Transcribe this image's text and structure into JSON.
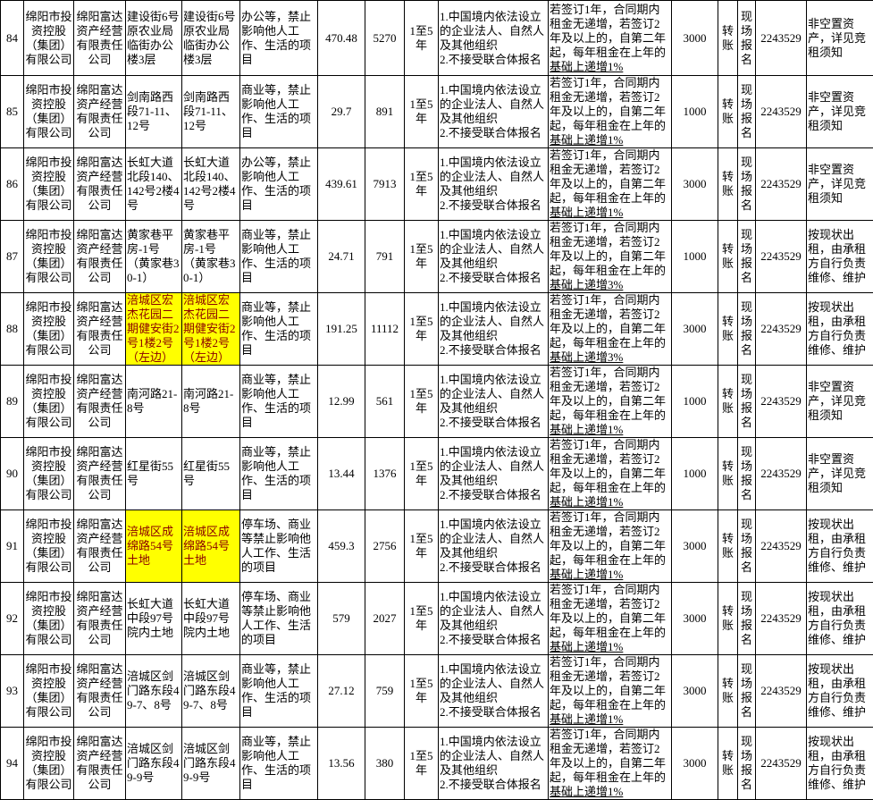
{
  "colors": {
    "highlight_bg": "#ffff00",
    "highlight_text": "#8b0000",
    "border": "#000000",
    "text": "#000000"
  },
  "table": {
    "rows": [
      {
        "num": "84",
        "owner": "绵阳市投资控股（集团）有限公司",
        "operator": "绵阳富达资产经营有限责任公司",
        "name": "建设街6号原农业局临街办公楼3层",
        "location": "建设街6号原农业局临街办公楼3层",
        "usage": "办公等，禁止影响他人工作、生活的项目",
        "area": "470.48",
        "price": "5270",
        "term": "1至5年",
        "qualification": "1.中国境内依法设立的企业法人、自然人及其他组织\n2.不接受联合体报名",
        "escalation_main": "若签订1年，合同期内租金无递增，若签订2年及以上的，自第二年起，每年租金在上年的",
        "escalation_tail": "基础上递增1%",
        "deposit": "3000",
        "payment": "转账",
        "registration": "现场报名",
        "phone": "2243529",
        "notes": "非空置资产，详见竞租须知",
        "highlight": false
      },
      {
        "num": "85",
        "owner": "绵阳市投资控股（集团）有限公司",
        "operator": "绵阳富达资产经营有限责任公司",
        "name": "剑南路西段71-11、12号",
        "location": "剑南路西段71-11、12号",
        "usage": "商业等，禁止影响他人工作、生活的项目",
        "area": "29.7",
        "price": "891",
        "term": "1至5年",
        "qualification": "1.中国境内依法设立的企业法人、自然人及其他组织\n2.不接受联合体报名",
        "escalation_main": "若签订1年，合同期内租金无递增，若签订2年及以上的，自第二年起，每年租金在上年的",
        "escalation_tail": "基础上递增1%",
        "deposit": "1000",
        "payment": "转账",
        "registration": "现场报名",
        "phone": "2243529",
        "notes": "非空置资产，详见竞租须知",
        "highlight": false
      },
      {
        "num": "86",
        "owner": "绵阳市投资控股（集团）有限公司",
        "operator": "绵阳富达资产经营有限责任公司",
        "name": "长虹大道北段140、142号2楼4号",
        "location": "长虹大道北段140、142号2楼4号",
        "usage": "办公等，禁止影响他人工作、生活的项目",
        "area": "439.61",
        "price": "7913",
        "term": "1至5年",
        "qualification": "1.中国境内依法设立的企业法人、自然人及其他组织\n2.不接受联合体报名",
        "escalation_main": "若签订1年，合同期内租金无递增，若签订2年及以上的，自第二年起，每年租金在上年的",
        "escalation_tail": "基础上递增1%",
        "deposit": "3000",
        "payment": "转账",
        "registration": "现场报名",
        "phone": "2243529",
        "notes": "非空置资产，详见竞租须知",
        "highlight": false
      },
      {
        "num": "87",
        "owner": "绵阳市投资控股（集团）有限公司",
        "operator": "绵阳富达资产经营有限责任公司",
        "name": "黄家巷平房-1号（黄家巷30-1）",
        "location": "黄家巷平房-1号（黄家巷30-1）",
        "usage": "商业等，禁止影响他人工作、生活的项目",
        "area": "24.71",
        "price": "791",
        "term": "1至5年",
        "qualification": "1.中国境内依法设立的企业法人、自然人及其他组织\n2.不接受联合体报名",
        "escalation_main": "若签订1年，合同期内租金无递增，若签订2年及以上的，自第二年起，每年租金在上年的",
        "escalation_tail": "基础上递增3%",
        "deposit": "1000",
        "payment": "转账",
        "registration": "现场报名",
        "phone": "2243529",
        "notes": "按现状出租，由承租方自行负责维修、维护",
        "highlight": false
      },
      {
        "num": "88",
        "owner": "绵阳市投资控股（集团）有限公司",
        "operator": "绵阳富达资产经营有限责任公司",
        "name": "涪城区宏杰花园二期健安街2号1楼2号（左边）",
        "location": "涪城区宏杰花园二期健安街2号1楼2号（左边）",
        "usage": "商业等，禁止影响他人工作、生活的项目",
        "area": "191.25",
        "price": "11112",
        "term": "1至5年",
        "qualification": "1.中国境内依法设立的企业法人、自然人及其他组织\n2.不接受联合体报名",
        "escalation_main": "若签订1年，合同期内租金无递增，若签订2年及以上的，自第二年起，每年租金在上年的",
        "escalation_tail": "基础上递增3%",
        "deposit": "3000",
        "payment": "转账",
        "registration": "现场报名",
        "phone": "2243529",
        "notes": "按现状出租，由承租方自行负责维修、维护",
        "highlight": true
      },
      {
        "num": "89",
        "owner": "绵阳市投资控股（集团）有限公司",
        "operator": "绵阳富达资产经营有限责任公司",
        "name": "南河路21-8号",
        "location": "南河路21-8号",
        "usage": "商业等，禁止影响他人工作、生活的项目",
        "area": "12.99",
        "price": "561",
        "term": "1至5年",
        "qualification": "1.中国境内依法设立的企业法人、自然人及其他组织\n2.不接受联合体报名",
        "escalation_main": "若签订1年，合同期内租金无递增，若签订2年及以上的，自第二年起，每年租金在上年的",
        "escalation_tail": "基础上递增1%",
        "deposit": "1000",
        "payment": "转账",
        "registration": "现场报名",
        "phone": "2243529",
        "notes": "非空置资产，详见竞租须知",
        "highlight": false
      },
      {
        "num": "90",
        "owner": "绵阳市投资控股（集团）有限公司",
        "operator": "绵阳富达资产经营有限责任公司",
        "name": "红星街55号",
        "location": "红星街55号",
        "usage": "商业等，禁止影响他人工作、生活的项目",
        "area": "13.44",
        "price": "1376",
        "term": "1至5年",
        "qualification": "1.中国境内依法设立的企业法人、自然人及其他组织\n2.不接受联合体报名",
        "escalation_main": "若签订1年，合同期内租金无递增，若签订2年及以上的，自第二年起，每年租金在上年的",
        "escalation_tail": "基础上递增1%",
        "deposit": "1000",
        "payment": "转账",
        "registration": "现场报名",
        "phone": "2243529",
        "notes": "非空置资产，详见竞租须知",
        "highlight": false
      },
      {
        "num": "91",
        "owner": "绵阳市投资控股（集团）有限公司",
        "operator": "绵阳富达资产经营有限责任公司",
        "name": "涪城区成绵路54号土地",
        "location": "涪城区成绵路54号土地",
        "usage": "停车场、商业等禁止影响他人工作、生活的项目",
        "area": "459.3",
        "price": "2756",
        "term": "1至5年",
        "qualification": "1.中国境内依法设立的企业法人、自然人及其他组织\n2.不接受联合体报名",
        "escalation_main": "若签订1年，合同期内租金无递增，若签订2年及以上的，自第二年起，每年租金在上年的",
        "escalation_tail": "基础上递增1%",
        "deposit": "3000",
        "payment": "转账",
        "registration": "现场报名",
        "phone": "2243529",
        "notes": "按现状出租，由承租方自行负责维修、维护",
        "highlight": true
      },
      {
        "num": "92",
        "owner": "绵阳市投资控股（集团）有限公司",
        "operator": "绵阳富达资产经营有限责任公司",
        "name": "长虹大道中段97号院内土地",
        "location": "长虹大道中段97号院内土地",
        "usage": "停车场、商业等禁止影响他人工作、生活的项目",
        "area": "579",
        "price": "2027",
        "term": "1至5年",
        "qualification": "1.中国境内依法设立的企业法人、自然人及其他组织\n2.不接受联合体报名",
        "escalation_main": "若签订1年，合同期内租金无递增，若签订2年及以上的，自第二年起，每年租金在上年的",
        "escalation_tail": "基础上递增1%",
        "deposit": "3000",
        "payment": "转账",
        "registration": "现场报名",
        "phone": "2243529",
        "notes": "按现状出租，由承租方自行负责维修、维护",
        "highlight": false
      },
      {
        "num": "93",
        "owner": "绵阳市投资控股（集团）有限公司",
        "operator": "绵阳富达资产经营有限责任公司",
        "name": "涪城区剑门路东段49-7、8号",
        "location": "涪城区剑门路东段49-7、8号",
        "usage": "商业等，禁止影响他人工作、生活的项目",
        "area": "27.12",
        "price": "759",
        "term": "1至5年",
        "qualification": "1.中国境内依法设立的企业法人、自然人及其他组织\n2.不接受联合体报名",
        "escalation_main": "若签订1年，合同期内租金无递增，若签订2年及以上的，自第二年起，每年租金在上年的",
        "escalation_tail": "基础上递增1%",
        "deposit": "3000",
        "payment": "转账",
        "registration": "现场报名",
        "phone": "2243529",
        "notes": "按现状出租，由承租方自行负责维修、维护",
        "highlight": false
      },
      {
        "num": "94",
        "owner": "绵阳市投资控股（集团）有限公司",
        "operator": "绵阳富达资产经营有限责任公司",
        "name": "涪城区剑门路东段49-9号",
        "location": "涪城区剑门路东段49-9号",
        "usage": "商业等，禁止影响他人工作、生活的项目",
        "area": "13.56",
        "price": "380",
        "term": "1至5年",
        "qualification": "1.中国境内依法设立的企业法人、自然人及其他组织\n2.不接受联合体报名",
        "escalation_main": "若签订1年，合同期内租金无递增，若签订2年及以上的，自第二年起，每年租金在上年的",
        "escalation_tail": "基础上递增1%",
        "deposit": "3000",
        "payment": "转账",
        "registration": "现场报名",
        "phone": "2243529",
        "notes": "按现状出租，由承租方自行负责维修、维护",
        "highlight": false
      }
    ]
  }
}
